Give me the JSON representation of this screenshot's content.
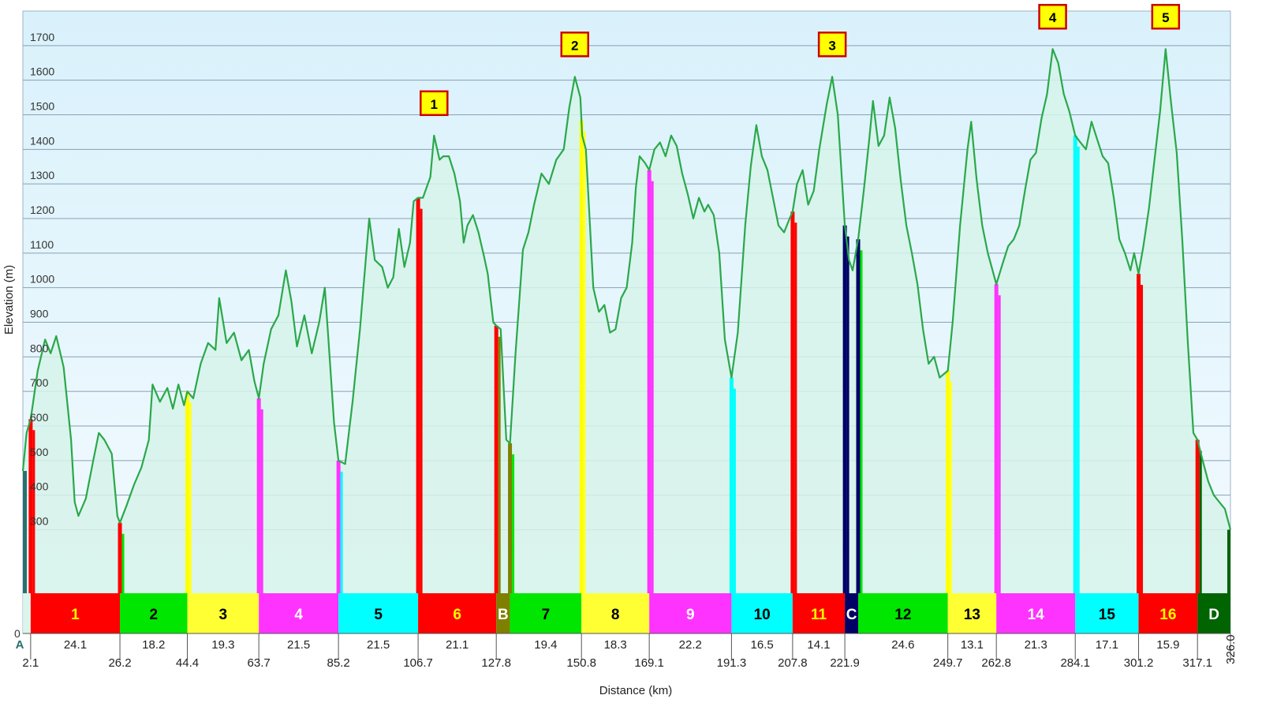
{
  "chart_data": {
    "type": "area",
    "xlabel": "Distance  (km)",
    "ylabel": "Elevation (m)",
    "xlim": [
      0,
      326.0
    ],
    "ylim": [
      0,
      1800
    ],
    "y_ticks": [
      0,
      300,
      400,
      500,
      600,
      700,
      800,
      900,
      1000,
      1100,
      1200,
      1300,
      1400,
      1500,
      1600,
      1700
    ],
    "grid": true,
    "profile": [
      [
        0,
        470
      ],
      [
        1,
        580
      ],
      [
        2.1,
        620
      ],
      [
        4,
        760
      ],
      [
        6,
        850
      ],
      [
        7.5,
        810
      ],
      [
        9,
        860
      ],
      [
        11,
        770
      ],
      [
        13,
        560
      ],
      [
        14,
        380
      ],
      [
        15,
        340
      ],
      [
        17,
        390
      ],
      [
        19,
        500
      ],
      [
        20.5,
        580
      ],
      [
        22,
        560
      ],
      [
        24,
        520
      ],
      [
        25.5,
        340
      ],
      [
        26.2,
        320
      ],
      [
        28,
        370
      ],
      [
        30,
        430
      ],
      [
        32,
        480
      ],
      [
        34,
        560
      ],
      [
        35,
        720
      ],
      [
        37,
        670
      ],
      [
        39,
        710
      ],
      [
        40.5,
        650
      ],
      [
        42,
        720
      ],
      [
        43.5,
        660
      ],
      [
        44.4,
        700
      ],
      [
        46,
        680
      ],
      [
        48,
        780
      ],
      [
        50,
        840
      ],
      [
        52,
        820
      ],
      [
        53,
        970
      ],
      [
        55,
        840
      ],
      [
        57,
        870
      ],
      [
        59,
        790
      ],
      [
        61,
        820
      ],
      [
        62.5,
        730
      ],
      [
        63.7,
        680
      ],
      [
        65,
        780
      ],
      [
        67,
        880
      ],
      [
        69,
        920
      ],
      [
        71,
        1050
      ],
      [
        72.5,
        960
      ],
      [
        74,
        830
      ],
      [
        76,
        920
      ],
      [
        78,
        810
      ],
      [
        80,
        900
      ],
      [
        81.5,
        1000
      ],
      [
        82.5,
        850
      ],
      [
        84,
        610
      ],
      [
        85.2,
        500
      ],
      [
        87,
        490
      ],
      [
        89,
        670
      ],
      [
        91,
        880
      ],
      [
        92,
        1010
      ],
      [
        93.5,
        1200
      ],
      [
        95,
        1080
      ],
      [
        97,
        1060
      ],
      [
        98.5,
        1000
      ],
      [
        100,
        1030
      ],
      [
        101.5,
        1170
      ],
      [
        103,
        1060
      ],
      [
        104.5,
        1130
      ],
      [
        105.5,
        1250
      ],
      [
        106.7,
        1260
      ],
      [
        108,
        1260
      ],
      [
        110,
        1320
      ],
      [
        111,
        1440
      ],
      [
        112.5,
        1370
      ],
      [
        113.5,
        1380
      ],
      [
        115,
        1380
      ],
      [
        116.5,
        1330
      ],
      [
        118,
        1250
      ],
      [
        119,
        1130
      ],
      [
        120,
        1180
      ],
      [
        121.5,
        1210
      ],
      [
        123,
        1160
      ],
      [
        124.5,
        1090
      ],
      [
        125.5,
        1040
      ],
      [
        127,
        900
      ],
      [
        127.8,
        890
      ],
      [
        129,
        880
      ],
      [
        130.5,
        560
      ],
      [
        131.5,
        550
      ],
      [
        133,
        810
      ],
      [
        135,
        1110
      ],
      [
        136.5,
        1160
      ],
      [
        138,
        1240
      ],
      [
        140,
        1330
      ],
      [
        142,
        1300
      ],
      [
        144,
        1370
      ],
      [
        146,
        1400
      ],
      [
        147.5,
        1520
      ],
      [
        149,
        1610
      ],
      [
        150.5,
        1550
      ],
      [
        151,
        1440
      ],
      [
        152,
        1400
      ],
      [
        153,
        1200
      ],
      [
        154,
        1000
      ],
      [
        155.5,
        930
      ],
      [
        157,
        950
      ],
      [
        158.5,
        870
      ],
      [
        160,
        880
      ],
      [
        161.5,
        970
      ],
      [
        163,
        1000
      ],
      [
        164.5,
        1130
      ],
      [
        165.5,
        1290
      ],
      [
        166.5,
        1380
      ],
      [
        168,
        1360
      ],
      [
        169.1,
        1340
      ],
      [
        170.5,
        1400
      ],
      [
        172,
        1420
      ],
      [
        173.5,
        1380
      ],
      [
        175,
        1440
      ],
      [
        176.5,
        1410
      ],
      [
        178,
        1330
      ],
      [
        179.5,
        1270
      ],
      [
        181,
        1200
      ],
      [
        182.5,
        1260
      ],
      [
        184,
        1220
      ],
      [
        185,
        1240
      ],
      [
        186.5,
        1210
      ],
      [
        188,
        1100
      ],
      [
        189.5,
        850
      ],
      [
        191.3,
        740
      ],
      [
        193,
        870
      ],
      [
        195,
        1180
      ],
      [
        196.5,
        1350
      ],
      [
        198,
        1470
      ],
      [
        199.5,
        1380
      ],
      [
        201,
        1340
      ],
      [
        202.5,
        1260
      ],
      [
        204,
        1180
      ],
      [
        205.5,
        1160
      ],
      [
        207,
        1200
      ],
      [
        207.8,
        1220
      ],
      [
        209,
        1300
      ],
      [
        210.5,
        1340
      ],
      [
        212,
        1240
      ],
      [
        213.5,
        1280
      ],
      [
        215,
        1400
      ],
      [
        217,
        1530
      ],
      [
        218.5,
        1610
      ],
      [
        220,
        1500
      ],
      [
        221.9,
        1180
      ],
      [
        223,
        1080
      ],
      [
        224,
        1050
      ],
      [
        225.5,
        1140
      ],
      [
        227,
        1280
      ],
      [
        228.5,
        1430
      ],
      [
        229.5,
        1540
      ],
      [
        231,
        1410
      ],
      [
        232.5,
        1440
      ],
      [
        234,
        1550
      ],
      [
        235.5,
        1460
      ],
      [
        237,
        1310
      ],
      [
        238.5,
        1180
      ],
      [
        240,
        1100
      ],
      [
        241.5,
        1010
      ],
      [
        243,
        880
      ],
      [
        244.5,
        780
      ],
      [
        246,
        800
      ],
      [
        247.5,
        740
      ],
      [
        249.7,
        760
      ],
      [
        251,
        900
      ],
      [
        253,
        1180
      ],
      [
        255,
        1400
      ],
      [
        256,
        1480
      ],
      [
        257.5,
        1310
      ],
      [
        259,
        1180
      ],
      [
        260.5,
        1100
      ],
      [
        262.8,
        1010
      ],
      [
        264.5,
        1070
      ],
      [
        266,
        1120
      ],
      [
        267.5,
        1140
      ],
      [
        269,
        1180
      ],
      [
        270.5,
        1280
      ],
      [
        272,
        1370
      ],
      [
        273.5,
        1390
      ],
      [
        275,
        1490
      ],
      [
        276.5,
        1560
      ],
      [
        278,
        1690
      ],
      [
        279.5,
        1650
      ],
      [
        281,
        1560
      ],
      [
        282.5,
        1510
      ],
      [
        284.1,
        1440
      ],
      [
        285.5,
        1420
      ],
      [
        287,
        1400
      ],
      [
        288.5,
        1480
      ],
      [
        290,
        1430
      ],
      [
        291.5,
        1380
      ],
      [
        293,
        1360
      ],
      [
        294.5,
        1260
      ],
      [
        296,
        1140
      ],
      [
        297.5,
        1100
      ],
      [
        299,
        1050
      ],
      [
        300,
        1100
      ],
      [
        301.2,
        1040
      ],
      [
        302.5,
        1120
      ],
      [
        304,
        1230
      ],
      [
        305.5,
        1370
      ],
      [
        307,
        1510
      ],
      [
        308.5,
        1690
      ],
      [
        310,
        1530
      ],
      [
        311.5,
        1390
      ],
      [
        313,
        1140
      ],
      [
        314.5,
        840
      ],
      [
        316,
        580
      ],
      [
        317.1,
        560
      ],
      [
        318.5,
        500
      ],
      [
        320,
        440
      ],
      [
        321.5,
        400
      ],
      [
        323,
        380
      ],
      [
        324.5,
        360
      ],
      [
        326.0,
        300
      ]
    ],
    "segments": [
      {
        "label": "1",
        "start": 2.1,
        "end": 26.2,
        "length": "24.1",
        "color": "#ff0000",
        "text_color": "#ffff00",
        "marker_color": "#ff0000"
      },
      {
        "label": "2",
        "start": 26.2,
        "end": 44.4,
        "length": "18.2",
        "color": "#00e600",
        "text_color": "#000000",
        "marker_color": "#ff0000"
      },
      {
        "label": "3",
        "start": 44.4,
        "end": 63.7,
        "length": "19.3",
        "color": "#ffff33",
        "text_color": "#000000",
        "marker_color": "#ffff00"
      },
      {
        "label": "4",
        "start": 63.7,
        "end": 85.2,
        "length": "21.5",
        "color": "#ff33ff",
        "text_color": "#ffffff",
        "marker_color": "#ff33ff"
      },
      {
        "label": "5",
        "start": 85.2,
        "end": 106.7,
        "length": "21.5",
        "color": "#00ffff",
        "text_color": "#000000",
        "marker_color": "#ff33ff"
      },
      {
        "label": "6",
        "start": 106.7,
        "end": 127.8,
        "length": "21.1",
        "color": "#ff0000",
        "text_color": "#ffff00",
        "marker_color": "#ff0000"
      },
      {
        "label": "B",
        "start": 127.8,
        "end": 131.5,
        "length": "",
        "color": "#808000",
        "text_color": "#ffffff",
        "marker_color": "#ff0000"
      },
      {
        "label": "7",
        "start": 131.5,
        "end": 150.8,
        "length": "19.4",
        "color": "#00e600",
        "text_color": "#000000",
        "marker_color": "#808000"
      },
      {
        "label": "8",
        "start": 150.8,
        "end": 169.1,
        "length": "18.3",
        "color": "#ffff33",
        "text_color": "#000000",
        "marker_color": "#ffff00"
      },
      {
        "label": "9",
        "start": 169.1,
        "end": 191.3,
        "length": "22.2",
        "color": "#ff33ff",
        "text_color": "#ffffff",
        "marker_color": "#ff33ff"
      },
      {
        "label": "10",
        "start": 191.3,
        "end": 207.8,
        "length": "16.5",
        "color": "#00ffff",
        "text_color": "#000000",
        "marker_color": "#00ffff"
      },
      {
        "label": "11",
        "start": 207.8,
        "end": 221.9,
        "length": "14.1",
        "color": "#ff0000",
        "text_color": "#ffff00",
        "marker_color": "#ff0000"
      },
      {
        "label": "C",
        "start": 221.9,
        "end": 225.5,
        "length": "",
        "color": "#000066",
        "text_color": "#ffffff",
        "marker_color": "#000066"
      },
      {
        "label": "12",
        "start": 225.5,
        "end": 249.7,
        "length": "24.6",
        "color": "#00e600",
        "text_color": "#000000",
        "marker_color": "#000066"
      },
      {
        "label": "13",
        "start": 249.7,
        "end": 262.8,
        "length": "13.1",
        "color": "#ffff33",
        "text_color": "#000000",
        "marker_color": "#ffff00"
      },
      {
        "label": "14",
        "start": 262.8,
        "end": 284.1,
        "length": "21.3",
        "color": "#ff33ff",
        "text_color": "#ffffff",
        "marker_color": "#ff33ff"
      },
      {
        "label": "15",
        "start": 284.1,
        "end": 301.2,
        "length": "17.1",
        "color": "#00ffff",
        "text_color": "#000000",
        "marker_color": "#00ffff"
      },
      {
        "label": "16",
        "start": 301.2,
        "end": 317.1,
        "length": "15.9",
        "color": "#ff0000",
        "text_color": "#ffff00",
        "marker_color": "#ff0000"
      },
      {
        "label": "D",
        "start": 317.1,
        "end": 326.0,
        "length": "",
        "color": "#006400",
        "text_color": "#ffffff",
        "marker_color": "#ff0000"
      }
    ],
    "point_labels": [
      {
        "label": "A",
        "x": 0
      }
    ],
    "distance_ticks": [
      "2.1",
      "26.2",
      "44.4",
      "63.7",
      "85.2",
      "106.7",
      "127.8",
      "150.8",
      "169.1",
      "191.3",
      "207.8",
      "221.9",
      "249.7",
      "262.8",
      "284.1",
      "301.2",
      "317.1",
      "326.0"
    ],
    "distance_tick_values": [
      2.1,
      26.2,
      44.4,
      63.7,
      85.2,
      106.7,
      127.8,
      150.8,
      169.1,
      191.3,
      207.8,
      221.9,
      249.7,
      262.8,
      284.1,
      301.2,
      317.1,
      326.0
    ],
    "peaks": [
      {
        "label": "1",
        "x": 111,
        "elevation": 1440
      },
      {
        "label": "2",
        "x": 149,
        "elevation": 1610
      },
      {
        "label": "3",
        "x": 218.5,
        "elevation": 1610
      },
      {
        "label": "4",
        "x": 278,
        "elevation": 1690
      },
      {
        "label": "5",
        "x": 308.5,
        "elevation": 1690
      }
    ],
    "colors": {
      "line": "#2aa84a",
      "fill": "#d6f3ea",
      "plot_bg_top": "#d9f1fb",
      "plot_bg_bottom": "#f4fbff",
      "grid": "#8aa0b4",
      "peak_box": "#ffff00",
      "peak_border": "#cc0000"
    }
  }
}
